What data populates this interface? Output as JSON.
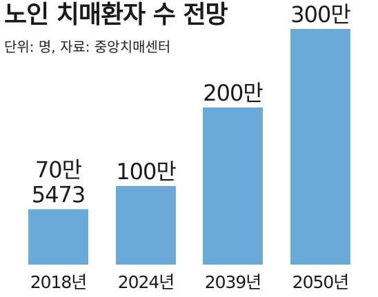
{
  "chart_data": {
    "type": "bar",
    "title": "노인 치매환자 수 전망",
    "subtitle": "단위: 명, 자료: 중앙치매센터",
    "categories": [
      "2018년",
      "2024년",
      "2039년",
      "2050년"
    ],
    "values": [
      705473,
      1000000,
      2000000,
      3000000
    ],
    "value_labels": [
      [
        "70만",
        "5473"
      ],
      [
        "100만"
      ],
      [
        "200만"
      ],
      [
        "300만"
      ]
    ],
    "xlabel": "",
    "ylabel": "",
    "grid": false,
    "colors": {
      "bar": "#6baad6",
      "text": "#1a1a1a"
    }
  }
}
